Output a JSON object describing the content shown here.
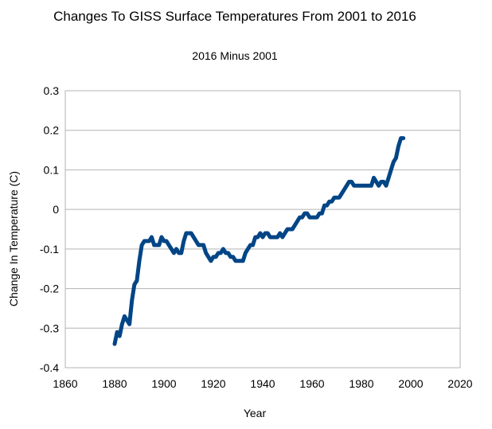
{
  "chart_data": {
    "type": "line",
    "title": "Changes To GISS Surface Temperatures From 2001 to 2016",
    "subtitle": "2016 Minus 2001",
    "xlabel": "Year",
    "ylabel": "Change In Temperature (C)",
    "xlim": [
      1860,
      2020
    ],
    "ylim": [
      -0.4,
      0.3
    ],
    "x_ticks": [
      "1860",
      "1880",
      "1900",
      "1920",
      "1940",
      "1960",
      "1980",
      "2000",
      "2020"
    ],
    "y_ticks": [
      "0.3",
      "0.2",
      "0.1",
      "0",
      "-0.1",
      "-0.2",
      "-0.3",
      "-0.4"
    ],
    "grid": "horizontal",
    "legend": "none",
    "series": [
      {
        "color": "#004586",
        "x": [
          1880,
          1881,
          1882,
          1883,
          1884,
          1885,
          1886,
          1887,
          1888,
          1889,
          1890,
          1891,
          1892,
          1893,
          1894,
          1895,
          1896,
          1897,
          1898,
          1899,
          1900,
          1901,
          1902,
          1903,
          1904,
          1905,
          1906,
          1907,
          1908,
          1909,
          1910,
          1911,
          1912,
          1913,
          1914,
          1915,
          1916,
          1917,
          1918,
          1919,
          1920,
          1921,
          1922,
          1923,
          1924,
          1925,
          1926,
          1927,
          1928,
          1929,
          1930,
          1931,
          1932,
          1933,
          1934,
          1935,
          1936,
          1937,
          1938,
          1939,
          1940,
          1941,
          1942,
          1943,
          1944,
          1945,
          1946,
          1947,
          1948,
          1949,
          1950,
          1951,
          1952,
          1953,
          1954,
          1955,
          1956,
          1957,
          1958,
          1959,
          1960,
          1961,
          1962,
          1963,
          1964,
          1965,
          1966,
          1967,
          1968,
          1969,
          1970,
          1971,
          1972,
          1973,
          1974,
          1975,
          1976,
          1977,
          1978,
          1979,
          1980,
          1981,
          1982,
          1983,
          1984,
          1985,
          1986,
          1987,
          1988,
          1989,
          1990,
          1991,
          1992,
          1993,
          1994,
          1995,
          1996,
          1997
        ],
        "y": [
          -0.34,
          -0.31,
          -0.32,
          -0.29,
          -0.27,
          -0.28,
          -0.29,
          -0.23,
          -0.19,
          -0.18,
          -0.13,
          -0.09,
          -0.08,
          -0.08,
          -0.08,
          -0.07,
          -0.09,
          -0.09,
          -0.09,
          -0.07,
          -0.08,
          -0.08,
          -0.09,
          -0.1,
          -0.11,
          -0.1,
          -0.11,
          -0.11,
          -0.08,
          -0.06,
          -0.06,
          -0.06,
          -0.07,
          -0.08,
          -0.09,
          -0.09,
          -0.09,
          -0.11,
          -0.12,
          -0.13,
          -0.12,
          -0.12,
          -0.11,
          -0.11,
          -0.1,
          -0.11,
          -0.11,
          -0.12,
          -0.12,
          -0.13,
          -0.13,
          -0.13,
          -0.13,
          -0.11,
          -0.1,
          -0.09,
          -0.09,
          -0.07,
          -0.07,
          -0.06,
          -0.07,
          -0.06,
          -0.06,
          -0.07,
          -0.07,
          -0.07,
          -0.07,
          -0.06,
          -0.07,
          -0.06,
          -0.05,
          -0.05,
          -0.05,
          -0.04,
          -0.03,
          -0.02,
          -0.02,
          -0.01,
          -0.01,
          -0.02,
          -0.02,
          -0.02,
          -0.02,
          -0.01,
          -0.01,
          0.01,
          0.01,
          0.02,
          0.02,
          0.03,
          0.03,
          0.03,
          0.04,
          0.05,
          0.06,
          0.07,
          0.07,
          0.06,
          0.06,
          0.06,
          0.06,
          0.06,
          0.06,
          0.06,
          0.06,
          0.08,
          0.07,
          0.06,
          0.07,
          0.07,
          0.06,
          0.08,
          0.1,
          0.12,
          0.13,
          0.16,
          0.18,
          0.18
        ]
      }
    ]
  }
}
